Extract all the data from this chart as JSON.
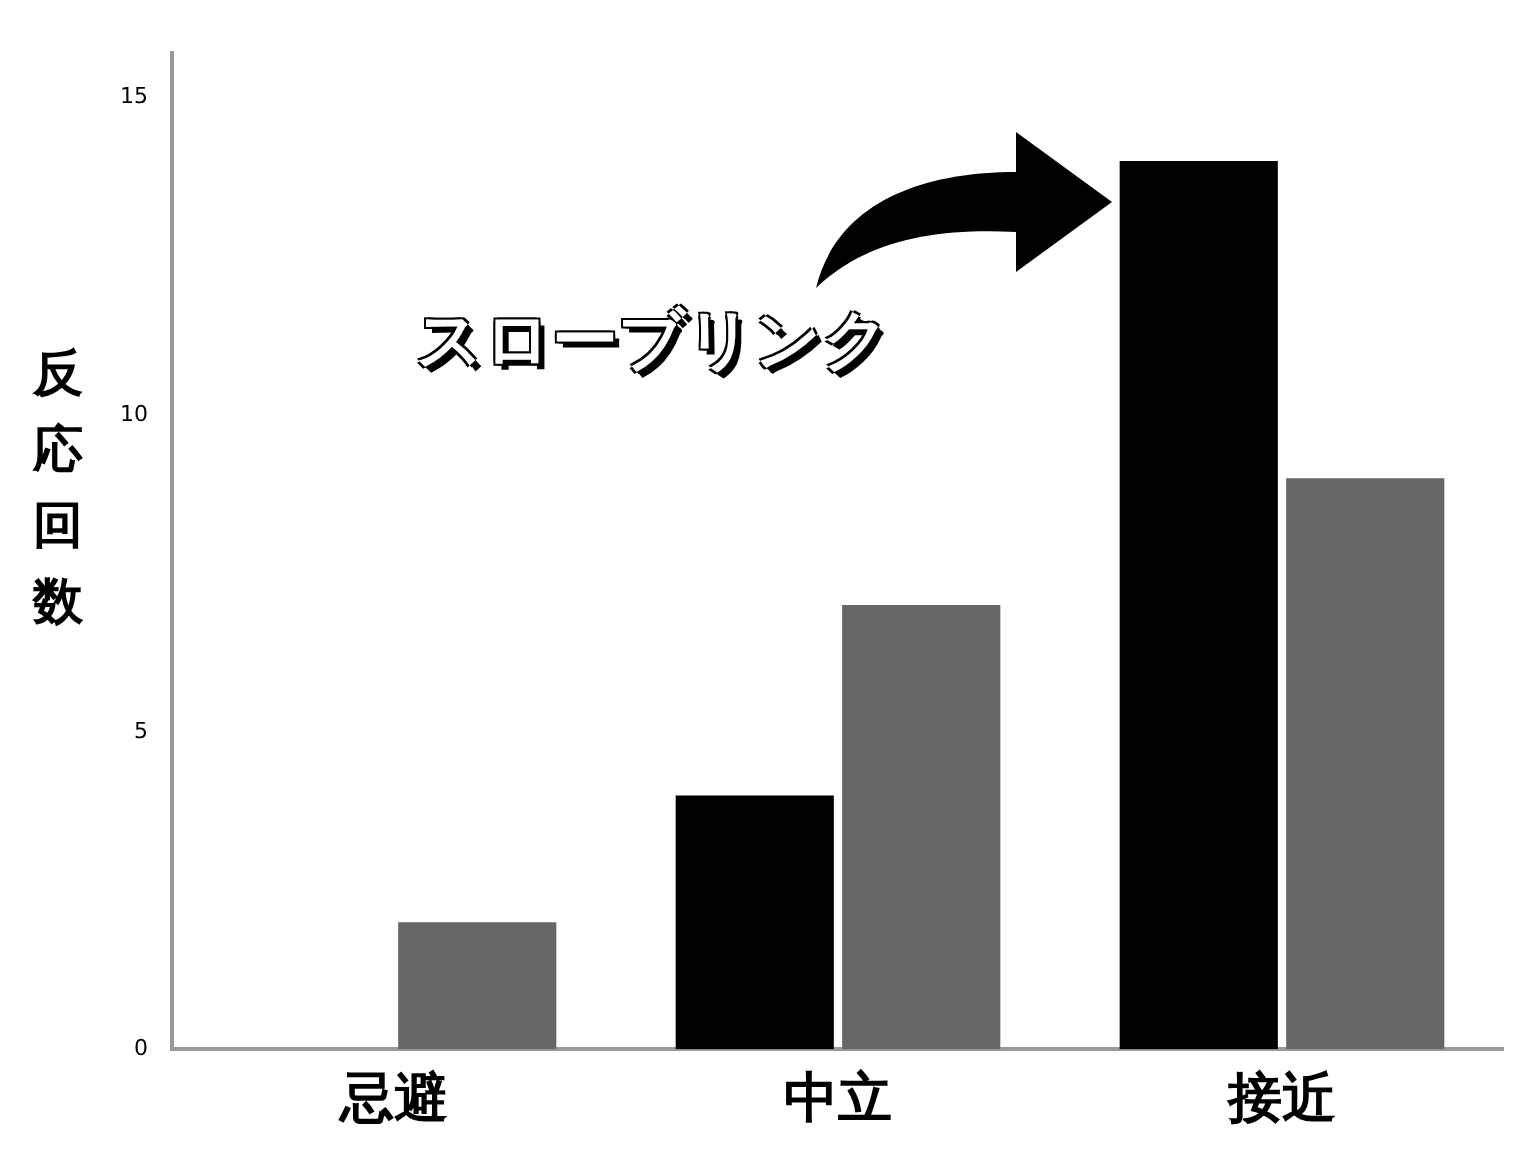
{
  "chart_data": {
    "type": "bar",
    "ylabel": "反応回数",
    "categories": [
      "忌避",
      "中立",
      "接近"
    ],
    "series": [
      {
        "color": "#000000",
        "values": [
          0,
          4,
          14
        ]
      },
      {
        "color": "#666666",
        "values": [
          2,
          7,
          9
        ]
      }
    ],
    "ylim": [
      0,
      15.7
    ],
    "yticks": [
      0,
      5,
      10,
      15
    ],
    "grid": false,
    "legend": false,
    "annotations": [
      "スローブリンク"
    ]
  }
}
